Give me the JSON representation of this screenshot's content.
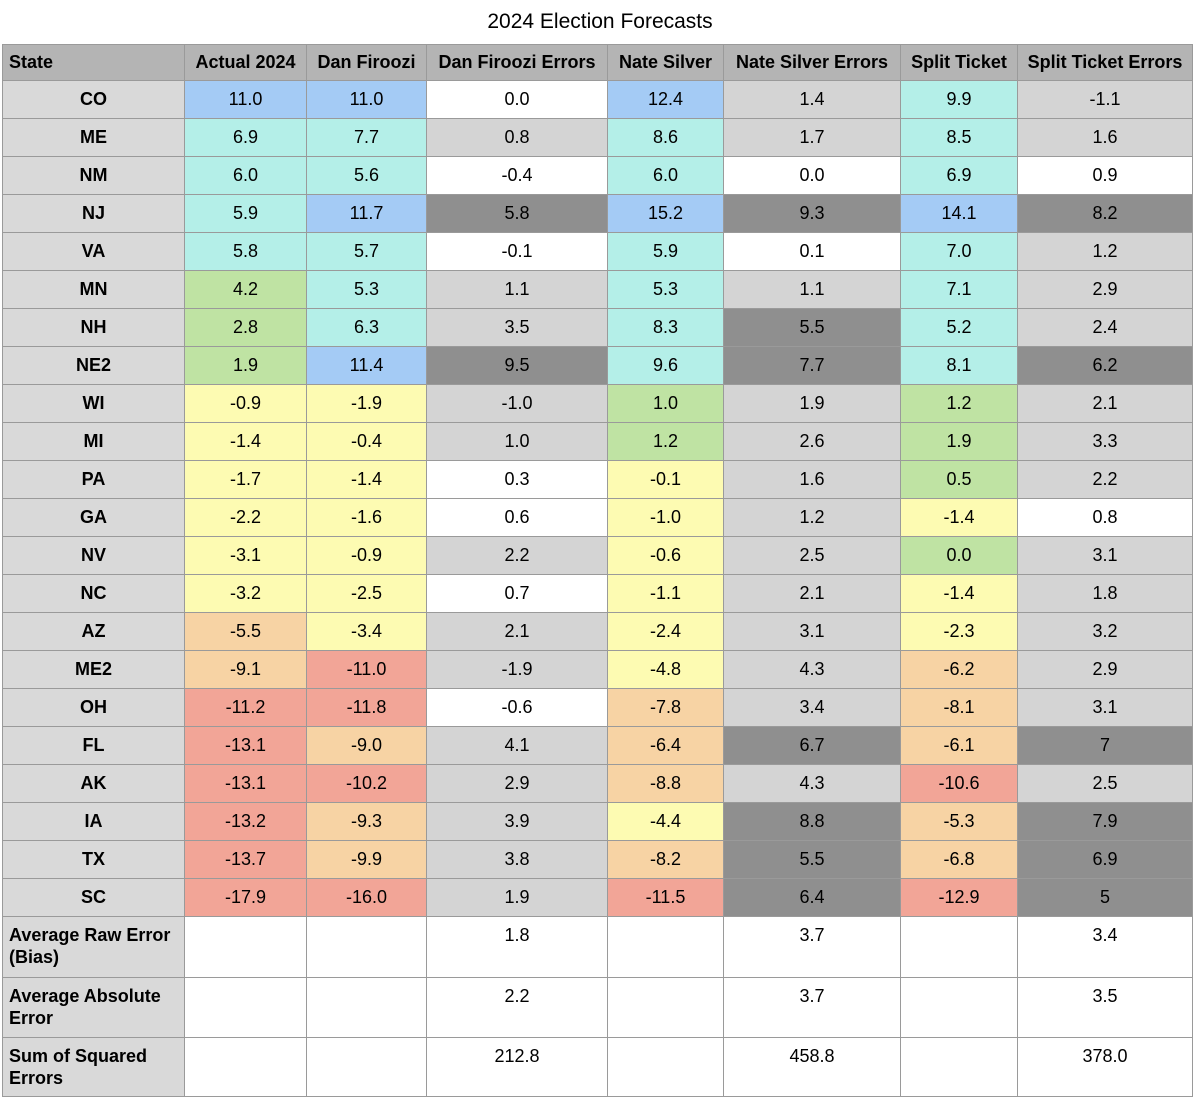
{
  "title": "2024 Election Forecasts",
  "headers": [
    "State",
    "Actual 2024",
    "Dan Firoozi",
    "Dan Firoozi Errors",
    "Nate Silver",
    "Nate Silver Errors",
    "Split Ticket",
    "Split Ticket Errors"
  ],
  "rows": [
    {
      "state": "CO",
      "actual": "11.0",
      "dan": "11.0",
      "dan_err": "0.0",
      "nate": "12.4",
      "nate_err": "1.4",
      "split": "9.9",
      "split_err": "-1.1"
    },
    {
      "state": "ME",
      "actual": "6.9",
      "dan": "7.7",
      "dan_err": "0.8",
      "nate": "8.6",
      "nate_err": "1.7",
      "split": "8.5",
      "split_err": "1.6"
    },
    {
      "state": "NM",
      "actual": "6.0",
      "dan": "5.6",
      "dan_err": "-0.4",
      "nate": "6.0",
      "nate_err": "0.0",
      "split": "6.9",
      "split_err": "0.9"
    },
    {
      "state": "NJ",
      "actual": "5.9",
      "dan": "11.7",
      "dan_err": "5.8",
      "nate": "15.2",
      "nate_err": "9.3",
      "split": "14.1",
      "split_err": "8.2"
    },
    {
      "state": "VA",
      "actual": "5.8",
      "dan": "5.7",
      "dan_err": "-0.1",
      "nate": "5.9",
      "nate_err": "0.1",
      "split": "7.0",
      "split_err": "1.2"
    },
    {
      "state": "MN",
      "actual": "4.2",
      "dan": "5.3",
      "dan_err": "1.1",
      "nate": "5.3",
      "nate_err": "1.1",
      "split": "7.1",
      "split_err": "2.9"
    },
    {
      "state": "NH",
      "actual": "2.8",
      "dan": "6.3",
      "dan_err": "3.5",
      "nate": "8.3",
      "nate_err": "5.5",
      "split": "5.2",
      "split_err": "2.4"
    },
    {
      "state": "NE2",
      "actual": "1.9",
      "dan": "11.4",
      "dan_err": "9.5",
      "nate": "9.6",
      "nate_err": "7.7",
      "split": "8.1",
      "split_err": "6.2"
    },
    {
      "state": "WI",
      "actual": "-0.9",
      "dan": "-1.9",
      "dan_err": "-1.0",
      "nate": "1.0",
      "nate_err": "1.9",
      "split": "1.2",
      "split_err": "2.1"
    },
    {
      "state": "MI",
      "actual": "-1.4",
      "dan": "-0.4",
      "dan_err": "1.0",
      "nate": "1.2",
      "nate_err": "2.6",
      "split": "1.9",
      "split_err": "3.3"
    },
    {
      "state": "PA",
      "actual": "-1.7",
      "dan": "-1.4",
      "dan_err": "0.3",
      "nate": "-0.1",
      "nate_err": "1.6",
      "split": "0.5",
      "split_err": "2.2"
    },
    {
      "state": "GA",
      "actual": "-2.2",
      "dan": "-1.6",
      "dan_err": "0.6",
      "nate": "-1.0",
      "nate_err": "1.2",
      "split": "-1.4",
      "split_err": "0.8"
    },
    {
      "state": "NV",
      "actual": "-3.1",
      "dan": "-0.9",
      "dan_err": "2.2",
      "nate": "-0.6",
      "nate_err": "2.5",
      "split": "0.0",
      "split_err": "3.1"
    },
    {
      "state": "NC",
      "actual": "-3.2",
      "dan": "-2.5",
      "dan_err": "0.7",
      "nate": "-1.1",
      "nate_err": "2.1",
      "split": "-1.4",
      "split_err": "1.8"
    },
    {
      "state": "AZ",
      "actual": "-5.5",
      "dan": "-3.4",
      "dan_err": "2.1",
      "nate": "-2.4",
      "nate_err": "3.1",
      "split": "-2.3",
      "split_err": "3.2"
    },
    {
      "state": "ME2",
      "actual": "-9.1",
      "dan": "-11.0",
      "dan_err": "-1.9",
      "nate": "-4.8",
      "nate_err": "4.3",
      "split": "-6.2",
      "split_err": "2.9"
    },
    {
      "state": "OH",
      "actual": "-11.2",
      "dan": "-11.8",
      "dan_err": "-0.6",
      "nate": "-7.8",
      "nate_err": "3.4",
      "split": "-8.1",
      "split_err": "3.1"
    },
    {
      "state": "FL",
      "actual": "-13.1",
      "dan": "-9.0",
      "dan_err": "4.1",
      "nate": "-6.4",
      "nate_err": "6.7",
      "split": "-6.1",
      "split_err": "7"
    },
    {
      "state": "AK",
      "actual": "-13.1",
      "dan": "-10.2",
      "dan_err": "2.9",
      "nate": "-8.8",
      "nate_err": "4.3",
      "split": "-10.6",
      "split_err": "2.5"
    },
    {
      "state": "IA",
      "actual": "-13.2",
      "dan": "-9.3",
      "dan_err": "3.9",
      "nate": "-4.4",
      "nate_err": "8.8",
      "split": "-5.3",
      "split_err": "7.9"
    },
    {
      "state": "TX",
      "actual": "-13.7",
      "dan": "-9.9",
      "dan_err": "3.8",
      "nate": "-8.2",
      "nate_err": "5.5",
      "split": "-6.8",
      "split_err": "6.9"
    },
    {
      "state": "SC",
      "actual": "-17.9",
      "dan": "-16.0",
      "dan_err": "1.9",
      "nate": "-11.5",
      "nate_err": "6.4",
      "split": "-12.9",
      "split_err": "5"
    }
  ],
  "summary": [
    {
      "label": "Average Raw Error (Bias)",
      "dan_err": "1.8",
      "nate_err": "3.7",
      "split_err": "3.4"
    },
    {
      "label": "Average Absolute Error",
      "dan_err": "2.2",
      "nate_err": "3.7",
      "split_err": "3.5"
    },
    {
      "label": "Sum of Squared Errors",
      "dan_err": "212.8",
      "nate_err": "458.8",
      "split_err": "378.0"
    }
  ],
  "colors": {
    "blue": "#a4cbf5",
    "teal": "#b4efe8",
    "green": "#bfe3a3",
    "yellow": "#fdfbb2",
    "orange": "#f7d3a4",
    "red": "#f2a597",
    "white": "#ffffff",
    "light_gray": "#d4d4d4",
    "dark_gray": "#8f8f8f",
    "header": "#b4b4b4"
  },
  "chart_data": {
    "type": "table",
    "title": "2024 Election Forecasts",
    "columns": [
      "State",
      "Actual 2024",
      "Dan Firoozi",
      "Dan Firoozi Errors",
      "Nate Silver",
      "Nate Silver Errors",
      "Split Ticket",
      "Split Ticket Errors"
    ],
    "categories": [
      "CO",
      "ME",
      "NM",
      "NJ",
      "VA",
      "MN",
      "NH",
      "NE2",
      "WI",
      "MI",
      "PA",
      "GA",
      "NV",
      "NC",
      "AZ",
      "ME2",
      "OH",
      "FL",
      "AK",
      "IA",
      "TX",
      "SC"
    ],
    "series": [
      {
        "name": "Actual 2024",
        "values": [
          11.0,
          6.9,
          6.0,
          5.9,
          5.8,
          4.2,
          2.8,
          1.9,
          -0.9,
          -1.4,
          -1.7,
          -2.2,
          -3.1,
          -3.2,
          -5.5,
          -9.1,
          -11.2,
          -13.1,
          -13.1,
          -13.2,
          -13.7,
          -17.9
        ]
      },
      {
        "name": "Dan Firoozi",
        "values": [
          11.0,
          7.7,
          5.6,
          11.7,
          5.7,
          5.3,
          6.3,
          11.4,
          -1.9,
          -0.4,
          -1.4,
          -1.6,
          -0.9,
          -2.5,
          -3.4,
          -11.0,
          -11.8,
          -9.0,
          -10.2,
          -9.3,
          -9.9,
          -16.0
        ]
      },
      {
        "name": "Dan Firoozi Errors",
        "values": [
          0.0,
          0.8,
          -0.4,
          5.8,
          -0.1,
          1.1,
          3.5,
          9.5,
          -1.0,
          1.0,
          0.3,
          0.6,
          2.2,
          0.7,
          2.1,
          -1.9,
          -0.6,
          4.1,
          2.9,
          3.9,
          3.8,
          1.9
        ]
      },
      {
        "name": "Nate Silver",
        "values": [
          12.4,
          8.6,
          6.0,
          15.2,
          5.9,
          5.3,
          8.3,
          9.6,
          1.0,
          1.2,
          -0.1,
          -1.0,
          -0.6,
          -1.1,
          -2.4,
          -4.8,
          -7.8,
          -6.4,
          -8.8,
          -4.4,
          -8.2,
          -11.5
        ]
      },
      {
        "name": "Nate Silver Errors",
        "values": [
          1.4,
          1.7,
          0.0,
          9.3,
          0.1,
          1.1,
          5.5,
          7.7,
          1.9,
          2.6,
          1.6,
          1.2,
          2.5,
          2.1,
          3.1,
          4.3,
          3.4,
          6.7,
          4.3,
          8.8,
          5.5,
          6.4
        ]
      },
      {
        "name": "Split Ticket",
        "values": [
          9.9,
          8.5,
          6.9,
          14.1,
          7.0,
          7.1,
          5.2,
          8.1,
          1.2,
          1.9,
          0.5,
          -1.4,
          0.0,
          -1.4,
          -2.3,
          -6.2,
          -8.1,
          -6.1,
          -10.6,
          -5.3,
          -6.8,
          -12.9
        ]
      },
      {
        "name": "Split Ticket Errors",
        "values": [
          -1.1,
          1.6,
          0.9,
          8.2,
          1.2,
          2.9,
          2.4,
          6.2,
          2.1,
          3.3,
          2.2,
          0.8,
          3.1,
          1.8,
          3.2,
          2.9,
          3.1,
          7,
          2.5,
          7.9,
          6.9,
          5
        ]
      }
    ],
    "summary": {
      "Average Raw Error (Bias)": {
        "Dan Firoozi Errors": 1.8,
        "Nate Silver Errors": 3.7,
        "Split Ticket Errors": 3.4
      },
      "Average Absolute Error": {
        "Dan Firoozi Errors": 2.2,
        "Nate Silver Errors": 3.7,
        "Split Ticket Errors": 3.5
      },
      "Sum of Squared Errors": {
        "Dan Firoozi Errors": 212.8,
        "Nate Silver Errors": 458.8,
        "Split Ticket Errors": 378.0
      }
    }
  }
}
